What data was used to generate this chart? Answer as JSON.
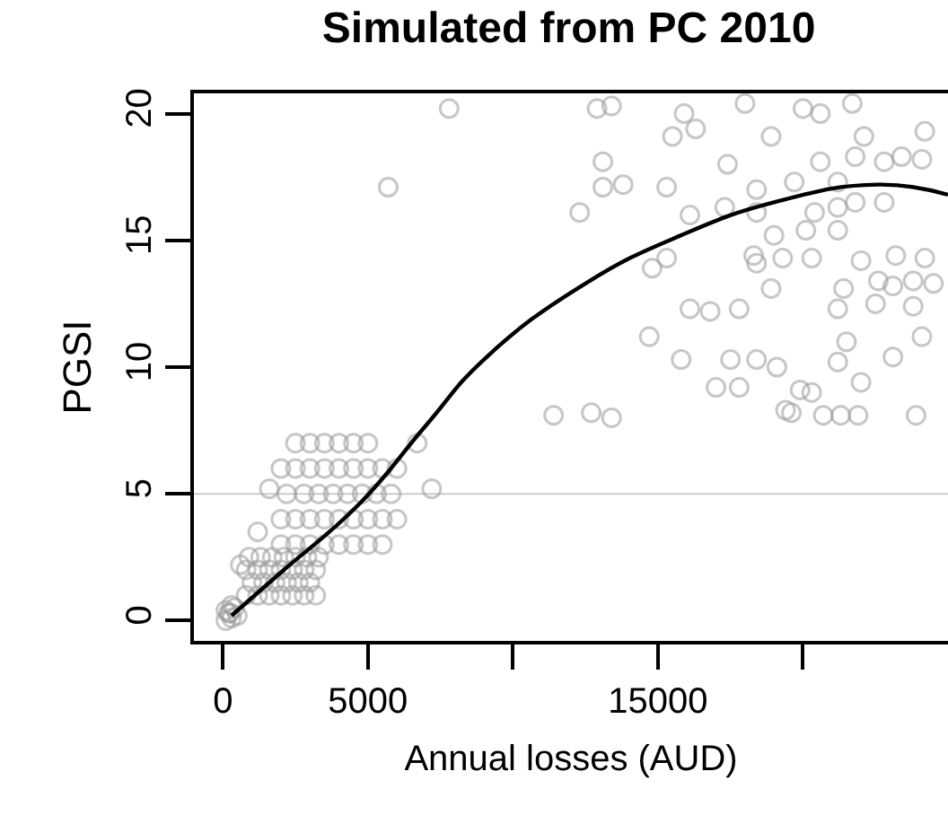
{
  "chart_data": {
    "type": "scatter",
    "title": "Simulated from PC 2010",
    "xlabel": "Annual losses (AUD)",
    "ylabel": "PGSI",
    "xlim": [
      -1000,
      25000
    ],
    "ylim": [
      -0.8,
      20.8
    ],
    "xticks": [
      0,
      5000,
      {
        "value": 10000,
        "label": null
      },
      15000,
      {
        "value": 20000,
        "label": null
      }
    ],
    "yticks": [
      0,
      5,
      10,
      15,
      20
    ],
    "grid": false,
    "ref_lines": [
      {
        "axis": "y",
        "value": 5,
        "label": null,
        "color": "#cccccc"
      }
    ],
    "series": [
      {
        "color": "#999999",
        "marker": "circle",
        "x": [
          100,
          300,
          200,
          400,
          300,
          100,
          500,
          250,
          800,
          1200,
          1600,
          2000,
          2400,
          2800,
          3200,
          800,
          1200,
          1600,
          2000,
          2400,
          2800,
          3200,
          1000,
          1400,
          1800,
          2200,
          2600,
          3000,
          900,
          1300,
          1700,
          2100,
          2500,
          2900,
          3300,
          600,
          1200,
          2000,
          2500,
          3000,
          3500,
          4000,
          4500,
          5000,
          5500,
          2000,
          2500,
          3000,
          3500,
          4000,
          4500,
          5000,
          5500,
          6000,
          2200,
          2800,
          3300,
          3800,
          4300,
          4800,
          5300,
          5800,
          2000,
          2500,
          3000,
          3500,
          4000,
          4500,
          5000,
          5500,
          6000,
          2500,
          3000,
          3500,
          4000,
          4500,
          5000,
          1600,
          6700,
          7200,
          7800,
          5700,
          12900,
          13400,
          15900,
          15500,
          16300,
          18000,
          18900,
          20000,
          20600,
          21700,
          22100,
          24200,
          13100,
          13100,
          13800,
          15300,
          17400,
          12300,
          16100,
          17300,
          18400,
          18400,
          19700,
          20600,
          21200,
          21800,
          22800,
          23400,
          24100,
          20400,
          21200,
          21800,
          22800,
          19000,
          20100,
          21200,
          14800,
          15300,
          18300,
          18400,
          19300,
          20300,
          22000,
          23200,
          24200,
          21400,
          22600,
          23100,
          23800,
          24500,
          18900,
          16100,
          16800,
          17800,
          21200,
          22500,
          23800,
          14700,
          15800,
          17500,
          18400,
          19100,
          21500,
          21200,
          23100,
          24100,
          17000,
          17800,
          19900,
          20300,
          22000,
          11400,
          12700,
          13400,
          19400,
          19600,
          20700,
          21300,
          21900,
          23900
        ],
        "values": [
          0,
          0.1,
          0.3,
          0.5,
          0.6,
          0.4,
          0.2,
          0.3,
          1,
          1,
          1,
          1,
          1,
          1,
          1,
          2,
          2,
          2,
          2,
          2,
          2,
          2,
          1.5,
          1.5,
          1.5,
          1.5,
          1.5,
          1.5,
          2.5,
          2.5,
          2.5,
          2.5,
          2.5,
          2.5,
          2.5,
          2.2,
          3.5,
          3,
          3,
          3,
          3,
          3,
          3,
          3,
          3,
          4,
          4,
          4,
          4,
          4,
          4,
          4,
          4,
          4,
          5,
          5,
          5,
          5,
          5,
          5,
          5,
          5,
          6,
          6,
          6,
          6,
          6,
          6,
          6,
          6,
          6,
          7,
          7,
          7,
          7,
          7,
          7,
          5.2,
          7,
          5.2,
          20.2,
          17.1,
          20.2,
          20.3,
          20,
          19.1,
          19.4,
          20.4,
          19.1,
          20.2,
          20,
          20.4,
          19.1,
          19.3,
          18.1,
          17.1,
          17.2,
          17.1,
          18,
          16.1,
          16,
          16.3,
          17,
          16.1,
          17.3,
          18.1,
          17.3,
          18.3,
          18.1,
          18.3,
          18.2,
          16.1,
          16.3,
          16.5,
          16.5,
          15.2,
          15.4,
          15.4,
          13.9,
          14.3,
          14.4,
          14.1,
          14.3,
          14.3,
          14.2,
          14.4,
          14.3,
          13.1,
          13.4,
          13.2,
          13.4,
          13.3,
          13.1,
          12.3,
          12.2,
          12.3,
          12.3,
          12.5,
          12.4,
          11.2,
          10.3,
          10.3,
          10.3,
          10,
          11,
          10.2,
          10.4,
          11.2,
          9.2,
          9.2,
          9.1,
          9,
          9.4,
          8.1,
          8.2,
          8,
          8.3,
          8.2,
          8.1,
          8.1,
          8.1,
          8.1
        ]
      },
      {
        "type": "line",
        "marker": "none",
        "color": "#000000",
        "x": [
          300,
          2000,
          4700,
          7000,
          9000,
          12500,
          15800,
          19000,
          22600,
          25000
        ],
        "values": [
          0.2,
          1.9,
          4.6,
          7.7,
          10.3,
          13.3,
          15.2,
          16.5,
          17.2,
          16.8
        ]
      }
    ]
  }
}
